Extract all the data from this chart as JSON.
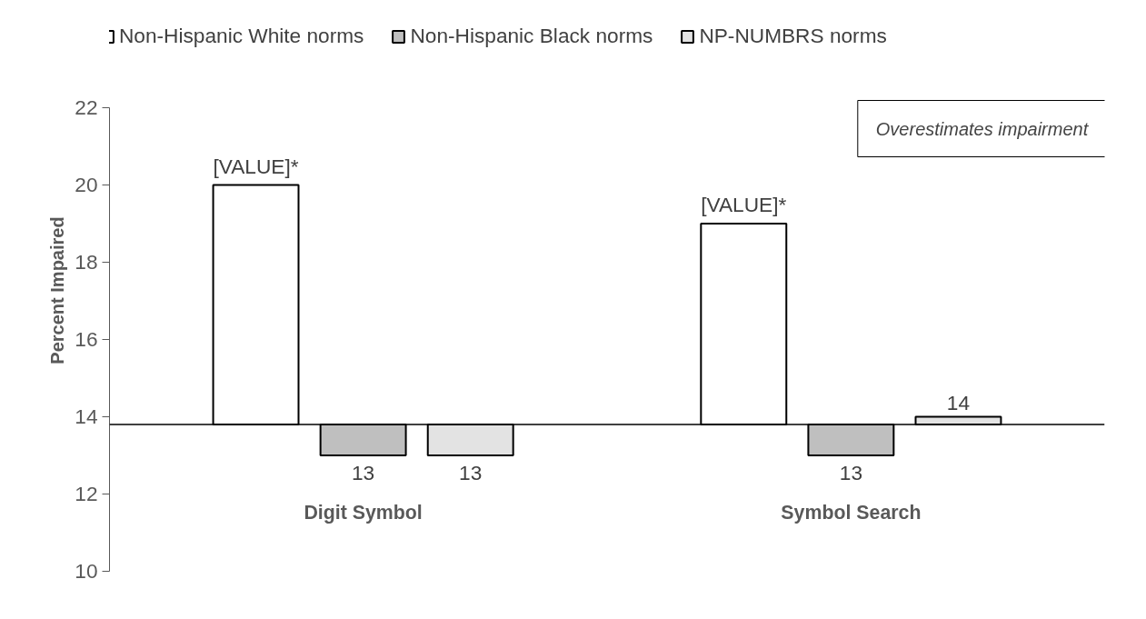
{
  "chart_data": {
    "type": "bar",
    "categories": [
      "Digit Symbol",
      "Symbol Search"
    ],
    "ylabel": "Percent Impaired",
    "series": [
      {
        "name": "Non-Hispanic White norms",
        "color": "#ffffff",
        "base": [
          13.8,
          13.8
        ],
        "values": [
          6.2,
          5.2
        ],
        "value_labels": [
          "[VALUE]*",
          "[VALUE]*"
        ]
      },
      {
        "name": "Non-Hispanic Black norms",
        "color": "#bfbfbf",
        "base": [
          13.8,
          13.8
        ],
        "values": [
          -0.8,
          -0.8
        ],
        "value_labels": [
          "13",
          "13"
        ]
      },
      {
        "name": "NP-NUMBRS norms",
        "color": "#e3e3e3",
        "base": [
          13.8,
          13.8
        ],
        "values": [
          -0.8,
          0.2
        ],
        "value_labels": [
          "13",
          "14"
        ]
      }
    ],
    "ylim": [
      10,
      22
    ],
    "yticks": [
      10,
      12,
      14,
      16,
      18,
      20,
      22
    ],
    "ref_lines": [
      {
        "axis": "y",
        "value": 13.8
      }
    ],
    "annotations": [
      "Overestimates impairment"
    ],
    "grid": false,
    "legend": "top"
  }
}
